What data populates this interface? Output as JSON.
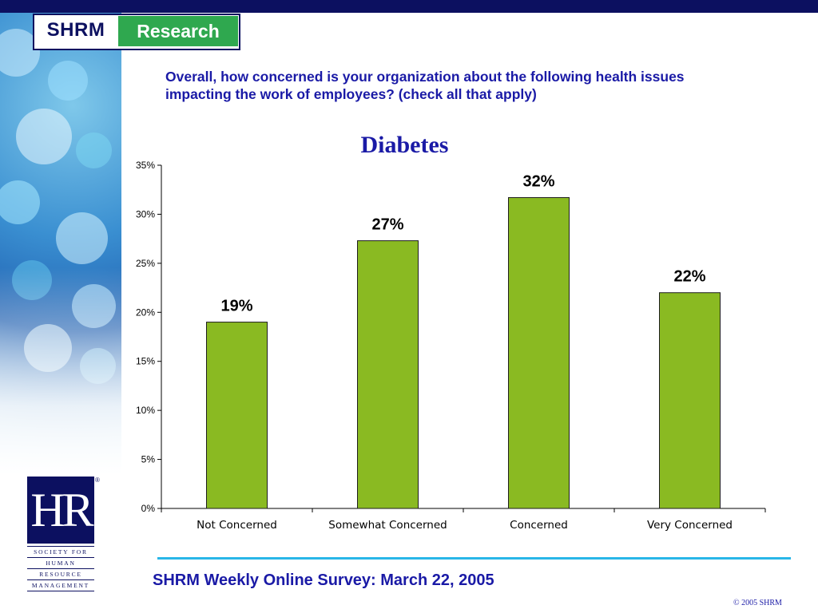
{
  "brand": {
    "left": "SHRM",
    "right": "Research"
  },
  "question": "Overall, how concerned is your organization about the following health issues impacting the work of employees? (check all that apply)",
  "footer": {
    "survey": "SHRM Weekly Online Survey: March 22, 2005",
    "copyright": "© 2005 SHRM"
  },
  "logo": {
    "letters": "HR",
    "lines": [
      "SOCIETY FOR",
      "HUMAN",
      "RESOURCE",
      "MANAGEMENT"
    ]
  },
  "colors": {
    "bar": "#8aba22",
    "bar_stroke": "#1d1d1d",
    "title": "#1a1aa6",
    "accent": "#29b6e8",
    "navy": "#0c1060"
  },
  "chart_data": {
    "type": "bar",
    "title": "Diabetes",
    "categories": [
      "Not Concerned",
      "Somewhat Concerned",
      "Concerned",
      "Very Concerned"
    ],
    "values": [
      19,
      27.3,
      31.7,
      22
    ],
    "data_labels": [
      "19%",
      "27%",
      "32%",
      "22%"
    ],
    "y_ticks": [
      "0%",
      "5%",
      "10%",
      "15%",
      "20%",
      "25%",
      "30%",
      "35%"
    ],
    "ylim": [
      0,
      35
    ],
    "xlabel": "",
    "ylabel": "",
    "grid": false,
    "legend": "none"
  }
}
